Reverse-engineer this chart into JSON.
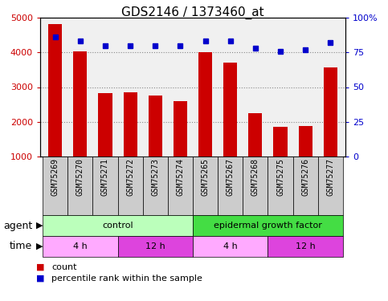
{
  "title": "GDS2146 / 1373460_at",
  "samples": [
    "GSM75269",
    "GSM75270",
    "GSM75271",
    "GSM75272",
    "GSM75273",
    "GSM75274",
    "GSM75265",
    "GSM75267",
    "GSM75268",
    "GSM75275",
    "GSM75276",
    "GSM75277"
  ],
  "counts": [
    4820,
    4020,
    2830,
    2840,
    2760,
    2600,
    4000,
    3700,
    2260,
    1860,
    1890,
    3560
  ],
  "percentile_ranks": [
    86,
    83,
    80,
    80,
    80,
    80,
    83,
    83,
    78,
    76,
    77,
    82
  ],
  "bar_color": "#cc0000",
  "dot_color": "#0000cc",
  "ylim_left": [
    1000,
    5000
  ],
  "ylim_right": [
    0,
    100
  ],
  "yticks_left": [
    1000,
    2000,
    3000,
    4000,
    5000
  ],
  "yticks_right": [
    0,
    25,
    50,
    75,
    100
  ],
  "ytick_labels_right": [
    "0",
    "25",
    "50",
    "75",
    "100%"
  ],
  "agent_groups": [
    {
      "label": "control",
      "start": 0,
      "end": 6,
      "color": "#bbffbb"
    },
    {
      "label": "epidermal growth factor",
      "start": 6,
      "end": 12,
      "color": "#44dd44"
    }
  ],
  "time_groups": [
    {
      "label": "4 h",
      "start": 0,
      "end": 3,
      "color": "#ffaaff"
    },
    {
      "label": "12 h",
      "start": 3,
      "end": 6,
      "color": "#dd44dd"
    },
    {
      "label": "4 h",
      "start": 6,
      "end": 9,
      "color": "#ffaaff"
    },
    {
      "label": "12 h",
      "start": 9,
      "end": 12,
      "color": "#dd44dd"
    }
  ],
  "legend_count_label": "count",
  "legend_pct_label": "percentile rank within the sample",
  "xlabel_agent": "agent",
  "xlabel_time": "time",
  "background_color": "#ffffff",
  "plot_bg_color": "#f0f0f0",
  "title_fontsize": 11,
  "tick_fontsize": 8,
  "label_fontsize": 7,
  "bar_width": 0.55,
  "sample_bg_color": "#cccccc",
  "grid_linestyle": "dotted",
  "grid_color": "#888888"
}
